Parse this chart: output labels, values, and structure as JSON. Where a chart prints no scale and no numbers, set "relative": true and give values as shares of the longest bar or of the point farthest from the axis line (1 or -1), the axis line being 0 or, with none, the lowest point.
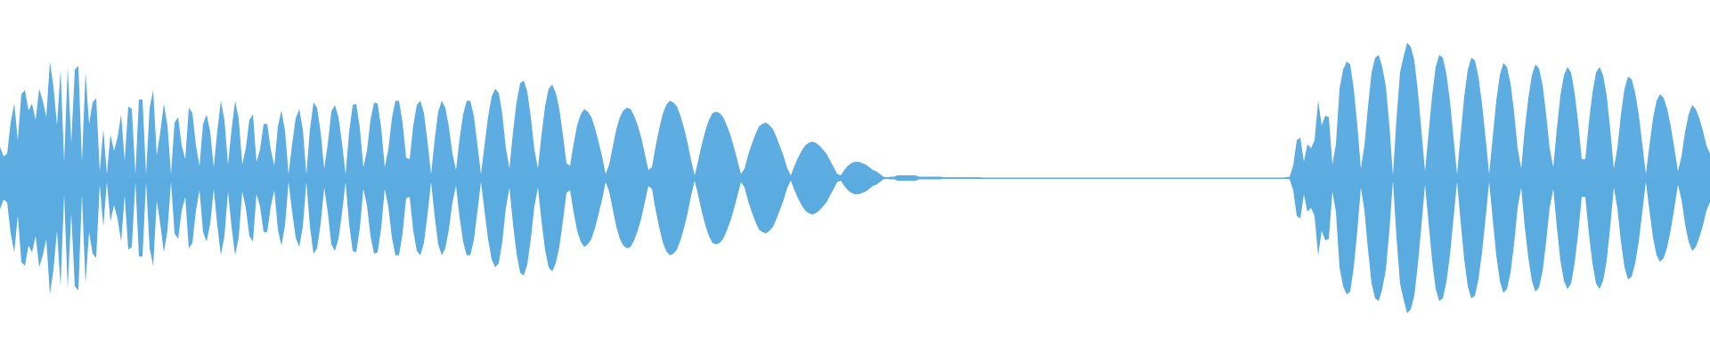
{
  "chart_data": {
    "type": "area",
    "relative": true,
    "tick_labels": false,
    "ref_lines": [
      {
        "axis": "y",
        "value": 0,
        "color": "#5dade2"
      }
    ],
    "categories": [
      null,
      null,
      null,
      null,
      null,
      null,
      null,
      null,
      null,
      null,
      null,
      null,
      null,
      null,
      null,
      null,
      null,
      null,
      null,
      null,
      null,
      null,
      null,
      null,
      null,
      null,
      null,
      null,
      null,
      null,
      null,
      null,
      null,
      null,
      null,
      null,
      null,
      null,
      null,
      null,
      null,
      null,
      null,
      null,
      null,
      null,
      null,
      null,
      null,
      null,
      null,
      null,
      null,
      null,
      null,
      null,
      null,
      null,
      null,
      null,
      null,
      null,
      null,
      null,
      null,
      null,
      null,
      null,
      null,
      null,
      null,
      null,
      null,
      null,
      null,
      null,
      null,
      null,
      null,
      null,
      null,
      null,
      null,
      null,
      null,
      null,
      null,
      null,
      null,
      null,
      null,
      null,
      null,
      null,
      null,
      null,
      null,
      null,
      null,
      null,
      null,
      null,
      null,
      null,
      null,
      null,
      null,
      null,
      null,
      null,
      null,
      null,
      null,
      null,
      null,
      null,
      null,
      null,
      null,
      null,
      null,
      null,
      null,
      null,
      null,
      null,
      null,
      null,
      null,
      null,
      null,
      null,
      null,
      null,
      null,
      null,
      null,
      null,
      null,
      null,
      null,
      null,
      null,
      null,
      null,
      null,
      null,
      null,
      null,
      null,
      null,
      null,
      null,
      null,
      null,
      null,
      null,
      null,
      null,
      null,
      null,
      null,
      null,
      null,
      null,
      null,
      null,
      null,
      null,
      null,
      null,
      null,
      null,
      null,
      null,
      null,
      null,
      null,
      null,
      null,
      null,
      null,
      null,
      null,
      null,
      null,
      null,
      null,
      null,
      null,
      null,
      null,
      null,
      null,
      null,
      null,
      null,
      null,
      null,
      null,
      null,
      null,
      null,
      null,
      null,
      null,
      null,
      null,
      null,
      null,
      null,
      null,
      null,
      null,
      null,
      null,
      null,
      null,
      null,
      null,
      null,
      null,
      null,
      null,
      null,
      null,
      null,
      null,
      null,
      null,
      null,
      null,
      null,
      null,
      null,
      null,
      null,
      null,
      null,
      null,
      null,
      null,
      null,
      null,
      null,
      null,
      null,
      null,
      null,
      null,
      null,
      null,
      null,
      null,
      null,
      null,
      null,
      null,
      null,
      null,
      null,
      null,
      null,
      null,
      null,
      null,
      null,
      null,
      null,
      null,
      null,
      null,
      null,
      null,
      null,
      null,
      null,
      null,
      null,
      null,
      null,
      null,
      null,
      null,
      null,
      null,
      null,
      null,
      null,
      null,
      null,
      null,
      null,
      null,
      null,
      null,
      null,
      null,
      null,
      null,
      null,
      null,
      null,
      null,
      null,
      null,
      null,
      null,
      null,
      null,
      null,
      null,
      null,
      null,
      null,
      null,
      null,
      null,
      null,
      null,
      null,
      null,
      null,
      null,
      null,
      null,
      null,
      null,
      null,
      null,
      null,
      null,
      null,
      null,
      null,
      null,
      null,
      null,
      null,
      null,
      null,
      null,
      null,
      null,
      null,
      null,
      null,
      null,
      null,
      null,
      null,
      null,
      null,
      null,
      null,
      null,
      null,
      null,
      null,
      null,
      null,
      null,
      null,
      null,
      null,
      null,
      null,
      null,
      null,
      null,
      null,
      null,
      null,
      null,
      null,
      null,
      null,
      null,
      null,
      null,
      null,
      null,
      null,
      null,
      null,
      null,
      null,
      null,
      null,
      null,
      null,
      null,
      null,
      null,
      null,
      null,
      null,
      null,
      null,
      null,
      null,
      null,
      null,
      null,
      null,
      null,
      null,
      null,
      null,
      null,
      null,
      null,
      null,
      null,
      null,
      null,
      null,
      null,
      null,
      null,
      null,
      null,
      null,
      null,
      null,
      null,
      null,
      null,
      null,
      null,
      null,
      null,
      null,
      null,
      null,
      null,
      null,
      null,
      null,
      null,
      null,
      null,
      null,
      null,
      null,
      null,
      null,
      null,
      null,
      null,
      null,
      null,
      null,
      null,
      null,
      null,
      null,
      null,
      null,
      null,
      null,
      null,
      null,
      null,
      null,
      null,
      null,
      null,
      null,
      null,
      null,
      null,
      null,
      null,
      null,
      null,
      null,
      null,
      null,
      null,
      null
    ],
    "series": [
      {
        "color": "#5dade2",
        "values": [
          0.23,
          0.16,
          0.18,
          0.41,
          0.55,
          0.28,
          0.62,
          0.65,
          0.5,
          0.55,
          0.43,
          0.66,
          0.57,
          0.45,
          0.86,
          0.68,
          0.39,
          0.8,
          0.12,
          0.82,
          0.26,
          0.8,
          0.83,
          0.12,
          0.78,
          0.4,
          0.56,
          0.59,
          0.05,
          0.36,
          0.03,
          0.32,
          0.2,
          0.3,
          0.47,
          0.13,
          0.53,
          0.51,
          0.03,
          0.58,
          0.58,
          0.03,
          0.52,
          0.65,
          0.17,
          0.34,
          0.55,
          0.39,
          0.03,
          0.41,
          0.45,
          0.24,
          0.14,
          0.52,
          0.48,
          0.24,
          0.09,
          0.4,
          0.47,
          0.34,
          0.08,
          0.35,
          0.57,
          0.43,
          0.1,
          0.36,
          0.57,
          0.44,
          0.1,
          0.22,
          0.43,
          0.47,
          0.12,
          0.21,
          0.4,
          0.4,
          0.21,
          0.09,
          0.38,
          0.5,
          0.35,
          0.03,
          0.25,
          0.44,
          0.51,
          0.36,
          0.03,
          0.36,
          0.56,
          0.52,
          0.34,
          0.07,
          0.25,
          0.49,
          0.54,
          0.45,
          0.26,
          0.03,
          0.34,
          0.54,
          0.55,
          0.37,
          0.08,
          0.2,
          0.43,
          0.56,
          0.55,
          0.37,
          0.08,
          0.21,
          0.44,
          0.57,
          0.57,
          0.41,
          0.15,
          0.14,
          0.39,
          0.54,
          0.57,
          0.48,
          0.27,
          0.03,
          0.28,
          0.49,
          0.57,
          0.52,
          0.38,
          0.18,
          0.06,
          0.29,
          0.47,
          0.57,
          0.57,
          0.46,
          0.25,
          0.03,
          0.24,
          0.45,
          0.6,
          0.66,
          0.63,
          0.47,
          0.22,
          0.07,
          0.34,
          0.56,
          0.7,
          0.72,
          0.64,
          0.45,
          0.21,
          0.07,
          0.32,
          0.53,
          0.66,
          0.69,
          0.63,
          0.51,
          0.32,
          0.11,
          0.09,
          0.25,
          0.39,
          0.47,
          0.51,
          0.49,
          0.45,
          0.37,
          0.27,
          0.16,
          0.03,
          0.1,
          0.23,
          0.36,
          0.45,
          0.5,
          0.52,
          0.51,
          0.46,
          0.39,
          0.3,
          0.18,
          0.06,
          0.08,
          0.23,
          0.36,
          0.47,
          0.54,
          0.57,
          0.56,
          0.53,
          0.46,
          0.37,
          0.26,
          0.13,
          0.02,
          0.13,
          0.25,
          0.35,
          0.43,
          0.48,
          0.49,
          0.48,
          0.45,
          0.39,
          0.32,
          0.23,
          0.13,
          0.03,
          0.07,
          0.17,
          0.25,
          0.32,
          0.38,
          0.4,
          0.41,
          0.39,
          0.36,
          0.3,
          0.23,
          0.16,
          0.07,
          0.02,
          0.09,
          0.15,
          0.2,
          0.24,
          0.26,
          0.27,
          0.26,
          0.24,
          0.21,
          0.18,
          0.13,
          0.08,
          0.03,
          0.02,
          0.06,
          0.09,
          0.11,
          0.12,
          0.12,
          0.11,
          0.1,
          0.08,
          0.06,
          0.05,
          0.03,
          0.01,
          0.005,
          0.01,
          0.01,
          0.02,
          0.02,
          0.02,
          0.02,
          0.02,
          0.02,
          0.01,
          0.01,
          0.01,
          0.01,
          0.01,
          0.01,
          0.01,
          0.005,
          0.005,
          0.005,
          0.005,
          0.005,
          0.005,
          0.005,
          0.005,
          0.005,
          0.005,
          0.005,
          0,
          0,
          0,
          0,
          0,
          0,
          0,
          0,
          0,
          0,
          0,
          0,
          0,
          0,
          0,
          0,
          0,
          0,
          0,
          0,
          0,
          0,
          0,
          0,
          0,
          0,
          0,
          0,
          0,
          0,
          0,
          0,
          0,
          0,
          0,
          0,
          0,
          0,
          0,
          0,
          0,
          0,
          0,
          0,
          0,
          0,
          0,
          0,
          0,
          0,
          0,
          0,
          0,
          0,
          0,
          0,
          0,
          0,
          0,
          0,
          0,
          0,
          0,
          0,
          0,
          0,
          0,
          0,
          0,
          0,
          0,
          0,
          0,
          0,
          0,
          0,
          0,
          0,
          0,
          0,
          0,
          0,
          0,
          0,
          0,
          0.005,
          0.01,
          0.09,
          0.28,
          0.3,
          0.12,
          0.25,
          0.22,
          0.28,
          0.57,
          0.39,
          0.46,
          0.45,
          0.1,
          0.25,
          0.66,
          0.8,
          0.86,
          0.84,
          0.66,
          0.39,
          0.07,
          0.24,
          0.53,
          0.78,
          0.89,
          0.91,
          0.82,
          0.68,
          0.39,
          0.02,
          0.44,
          0.78,
          0.9,
          1,
          0.97,
          0.87,
          0.64,
          0.35,
          0.05,
          0.33,
          0.61,
          0.82,
          0.91,
          0.89,
          0.77,
          0.57,
          0.3,
          0.03,
          0.32,
          0.6,
          0.8,
          0.89,
          0.87,
          0.75,
          0.55,
          0.3,
          0.03,
          0.3,
          0.57,
          0.76,
          0.85,
          0.82,
          0.7,
          0.49,
          0.22,
          0.07,
          0.36,
          0.59,
          0.76,
          0.84,
          0.81,
          0.69,
          0.47,
          0.22,
          0.08,
          0.36,
          0.61,
          0.76,
          0.82,
          0.78,
          0.63,
          0.41,
          0.14,
          0.14,
          0.41,
          0.63,
          0.78,
          0.82,
          0.76,
          0.61,
          0.36,
          0.07,
          0.22,
          0.47,
          0.66,
          0.75,
          0.73,
          0.63,
          0.47,
          0.25,
          0.03,
          0.24,
          0.44,
          0.57,
          0.62,
          0.59,
          0.51,
          0.38,
          0.22,
          0.05,
          0.16,
          0.34,
          0.47,
          0.54,
          0.51,
          0.44,
          0.35,
          0.24,
          0.18
        ]
      },
      {
        "color": "#5aabe0",
        "values": [
          -0.23,
          -0.16,
          -0.18,
          -0.41,
          -0.55,
          -0.28,
          -0.62,
          -0.65,
          -0.5,
          -0.55,
          -0.43,
          -0.66,
          -0.57,
          -0.45,
          -0.86,
          -0.68,
          -0.39,
          -0.8,
          -0.12,
          -0.82,
          -0.26,
          -0.8,
          -0.83,
          -0.12,
          -0.78,
          -0.4,
          -0.56,
          -0.59,
          -0.05,
          -0.36,
          -0.03,
          -0.32,
          -0.2,
          -0.3,
          -0.47,
          -0.13,
          -0.53,
          -0.51,
          -0.03,
          -0.58,
          -0.58,
          -0.03,
          -0.52,
          -0.65,
          -0.17,
          -0.34,
          -0.55,
          -0.39,
          -0.03,
          -0.41,
          -0.45,
          -0.24,
          -0.14,
          -0.52,
          -0.48,
          -0.24,
          -0.09,
          -0.4,
          -0.47,
          -0.34,
          -0.08,
          -0.35,
          -0.57,
          -0.43,
          -0.1,
          -0.36,
          -0.57,
          -0.44,
          -0.1,
          -0.22,
          -0.43,
          -0.47,
          -0.12,
          -0.21,
          -0.4,
          -0.4,
          -0.21,
          -0.09,
          -0.38,
          -0.5,
          -0.35,
          -0.03,
          -0.25,
          -0.44,
          -0.51,
          -0.36,
          -0.03,
          -0.36,
          -0.56,
          -0.52,
          -0.34,
          -0.07,
          -0.25,
          -0.49,
          -0.54,
          -0.45,
          -0.26,
          -0.03,
          -0.34,
          -0.54,
          -0.55,
          -0.37,
          -0.08,
          -0.2,
          -0.43,
          -0.56,
          -0.55,
          -0.37,
          -0.08,
          -0.21,
          -0.44,
          -0.57,
          -0.57,
          -0.41,
          -0.15,
          -0.14,
          -0.39,
          -0.54,
          -0.57,
          -0.48,
          -0.27,
          -0.03,
          -0.28,
          -0.49,
          -0.57,
          -0.52,
          -0.38,
          -0.18,
          -0.06,
          -0.29,
          -0.47,
          -0.57,
          -0.57,
          -0.46,
          -0.25,
          -0.03,
          -0.24,
          -0.45,
          -0.6,
          -0.66,
          -0.63,
          -0.47,
          -0.22,
          -0.07,
          -0.34,
          -0.56,
          -0.7,
          -0.72,
          -0.64,
          -0.45,
          -0.21,
          -0.07,
          -0.32,
          -0.53,
          -0.66,
          -0.69,
          -0.63,
          -0.51,
          -0.32,
          -0.11,
          -0.09,
          -0.25,
          -0.39,
          -0.47,
          -0.51,
          -0.49,
          -0.45,
          -0.37,
          -0.27,
          -0.16,
          -0.03,
          -0.1,
          -0.23,
          -0.36,
          -0.45,
          -0.5,
          -0.52,
          -0.51,
          -0.46,
          -0.39,
          -0.3,
          -0.18,
          -0.06,
          -0.08,
          -0.23,
          -0.36,
          -0.47,
          -0.54,
          -0.57,
          -0.56,
          -0.53,
          -0.46,
          -0.37,
          -0.26,
          -0.13,
          -0.02,
          -0.13,
          -0.25,
          -0.35,
          -0.43,
          -0.48,
          -0.49,
          -0.48,
          -0.45,
          -0.39,
          -0.32,
          -0.23,
          -0.13,
          -0.03,
          -0.07,
          -0.17,
          -0.25,
          -0.32,
          -0.38,
          -0.4,
          -0.41,
          -0.39,
          -0.36,
          -0.3,
          -0.23,
          -0.16,
          -0.07,
          -0.02,
          -0.09,
          -0.15,
          -0.2,
          -0.24,
          -0.26,
          -0.27,
          -0.26,
          -0.24,
          -0.21,
          -0.18,
          -0.13,
          -0.08,
          -0.03,
          -0.02,
          -0.06,
          -0.09,
          -0.11,
          -0.12,
          -0.12,
          -0.11,
          -0.1,
          -0.08,
          -0.06,
          -0.05,
          -0.03,
          -0.01,
          -0.005,
          -0.01,
          -0.01,
          -0.02,
          -0.02,
          -0.02,
          -0.02,
          -0.02,
          -0.02,
          -0.01,
          -0.01,
          -0.01,
          -0.01,
          -0.01,
          -0.01,
          -0.01,
          -0.005,
          -0.005,
          -0.005,
          -0.005,
          -0.005,
          -0.005,
          -0.005,
          -0.005,
          -0.005,
          -0.005,
          -0.005,
          0,
          0,
          0,
          0,
          0,
          0,
          0,
          0,
          0,
          0,
          0,
          0,
          0,
          0,
          0,
          0,
          0,
          0,
          0,
          0,
          0,
          0,
          0,
          0,
          0,
          0,
          0,
          0,
          0,
          0,
          0,
          0,
          0,
          0,
          0,
          0,
          0,
          0,
          0,
          0,
          0,
          0,
          0,
          0,
          0,
          0,
          0,
          0,
          0,
          0,
          0,
          0,
          0,
          0,
          0,
          0,
          0,
          0,
          0,
          0,
          0,
          0,
          0,
          0,
          0,
          0,
          0,
          0,
          0,
          0,
          0,
          0,
          0,
          0,
          0,
          0,
          0,
          0,
          0,
          0,
          0,
          0,
          0,
          0,
          0,
          -0.005,
          -0.01,
          -0.09,
          -0.28,
          -0.3,
          -0.12,
          -0.25,
          -0.22,
          -0.28,
          -0.57,
          -0.39,
          -0.46,
          -0.45,
          -0.1,
          -0.25,
          -0.66,
          -0.8,
          -0.86,
          -0.84,
          -0.66,
          -0.39,
          -0.07,
          -0.24,
          -0.53,
          -0.78,
          -0.89,
          -0.91,
          -0.82,
          -0.68,
          -0.39,
          -0.02,
          -0.44,
          -0.78,
          -0.9,
          -1,
          -0.97,
          -0.87,
          -0.64,
          -0.35,
          -0.05,
          -0.33,
          -0.61,
          -0.82,
          -0.91,
          -0.89,
          -0.77,
          -0.57,
          -0.3,
          -0.03,
          -0.32,
          -0.6,
          -0.8,
          -0.89,
          -0.87,
          -0.75,
          -0.55,
          -0.3,
          -0.03,
          -0.3,
          -0.57,
          -0.76,
          -0.85,
          -0.82,
          -0.7,
          -0.49,
          -0.22,
          -0.07,
          -0.36,
          -0.59,
          -0.76,
          -0.84,
          -0.81,
          -0.69,
          -0.47,
          -0.22,
          -0.08,
          -0.36,
          -0.61,
          -0.76,
          -0.82,
          -0.78,
          -0.63,
          -0.41,
          -0.14,
          -0.14,
          -0.41,
          -0.63,
          -0.78,
          -0.82,
          -0.76,
          -0.61,
          -0.36,
          -0.07,
          -0.22,
          -0.47,
          -0.66,
          -0.75,
          -0.73,
          -0.63,
          -0.47,
          -0.25,
          -0.03,
          -0.24,
          -0.44,
          -0.57,
          -0.62,
          -0.59,
          -0.51,
          -0.38,
          -0.22,
          -0.05,
          -0.16,
          -0.34,
          -0.47,
          -0.54,
          -0.51,
          -0.44,
          -0.35,
          -0.24,
          -0.18
        ]
      }
    ]
  }
}
